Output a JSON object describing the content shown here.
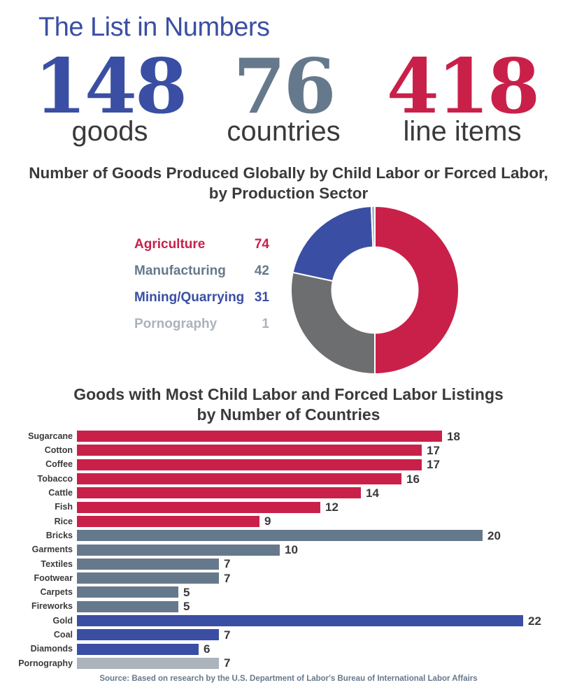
{
  "palette": {
    "blue": "#3A4FA3",
    "red": "#C92049",
    "slate": "#66798C",
    "gray": "#6D6E70",
    "light_gray": "#ABB3BD",
    "dark": "#3A3A3C",
    "white": "#FFFFFF"
  },
  "header": {
    "title": "The List in Numbers"
  },
  "stats": [
    {
      "value": "148",
      "label": "goods",
      "color": "blue"
    },
    {
      "value": "76",
      "label": "countries",
      "color": "slate"
    },
    {
      "value": "418",
      "label": "line items",
      "color": "red"
    }
  ],
  "chart_data": [
    {
      "type": "pie",
      "donut": true,
      "title": "Number of Goods Produced Globally by Child Labor or Forced Labor, by Production Sector",
      "title_lines": [
        "Number of Goods Produced Globally by Child Labor or Forced Labor,",
        "by Production Sector"
      ],
      "categories": [
        "Agriculture",
        "Manufacturing",
        "Mining/Quarrying",
        "Pornography"
      ],
      "values": [
        74,
        42,
        31,
        1
      ],
      "total": 148,
      "colors": [
        "#C92049",
        "#6D6E70",
        "#3A4FA3",
        "#ABB3BD"
      ],
      "legend_text_colors": [
        "#C92049",
        "#66798C",
        "#3A4FA3",
        "#ABB3BD"
      ],
      "legend_position": "left",
      "start_angle_deg": -90,
      "direction": "clockwise"
    },
    {
      "type": "bar",
      "orientation": "horizontal",
      "title": "Goods with Most Child Labor and Forced Labor Listings by Number of Countries",
      "title_lines": [
        "Goods with Most Child Labor and Forced Labor Listings",
        "by Number of Countries"
      ],
      "categories": [
        "Sugarcane",
        "Cotton",
        "Coffee",
        "Tobacco",
        "Cattle",
        "Fish",
        "Rice",
        "Bricks",
        "Garments",
        "Textiles",
        "Footwear",
        "Carpets",
        "Fireworks",
        "Gold",
        "Coal",
        "Diamonds",
        "Pornography"
      ],
      "values": [
        18,
        17,
        17,
        16,
        14,
        12,
        9,
        20,
        10,
        7,
        7,
        5,
        5,
        22,
        7,
        6,
        7
      ],
      "colors": [
        "#C92049",
        "#C92049",
        "#C92049",
        "#C92049",
        "#C92049",
        "#C92049",
        "#C92049",
        "#66798C",
        "#66798C",
        "#66798C",
        "#66798C",
        "#66798C",
        "#66798C",
        "#3A4FA3",
        "#3A4FA3",
        "#3A4FA3",
        "#ABB3BD"
      ],
      "xlim": [
        0,
        22
      ],
      "value_labels": true,
      "grid": false
    }
  ],
  "source": "Source: Based on research by the U.S. Department of Labor's Bureau of International Labor Affairs"
}
